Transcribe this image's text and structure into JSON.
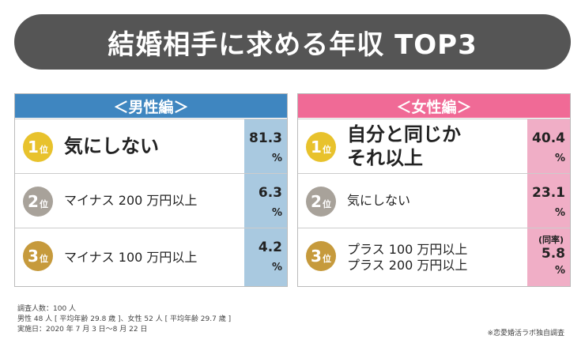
{
  "title": "結婚相手に求める年収 TOP3",
  "panels": [
    {
      "header": "＜男性編＞",
      "rows": [
        {
          "rank_num": "1",
          "rank_suffix": "位",
          "label_lines": [
            "気にしない"
          ],
          "value": "81.3",
          "unit": "%"
        },
        {
          "rank_num": "2",
          "rank_suffix": "位",
          "label_lines": [
            "マイナス 200 万円以上"
          ],
          "value": "6.3",
          "unit": "%"
        },
        {
          "rank_num": "3",
          "rank_suffix": "位",
          "label_lines": [
            "マイナス 100 万円以上"
          ],
          "value": "4.2",
          "unit": "%"
        }
      ]
    },
    {
      "header": "＜女性編＞",
      "rows": [
        {
          "rank_num": "1",
          "rank_suffix": "位",
          "label_lines": [
            "自分と同じか",
            "それ以上"
          ],
          "value": "40.4",
          "unit": "%"
        },
        {
          "rank_num": "2",
          "rank_suffix": "位",
          "label_lines": [
            "気にしない"
          ],
          "value": "23.1",
          "unit": "%"
        },
        {
          "rank_num": "3",
          "rank_suffix": "位",
          "label_lines": [
            "プラス 100 万円以上",
            "プラス 200 万円以上"
          ],
          "value": "5.8",
          "unit": "%",
          "note": "(同率)"
        }
      ]
    }
  ],
  "footnote": [
    "調査人数：100 人",
    "男性 48 人 [ 平均年齢 29.8 歳 ]、女性 52 人 [ 平均年齢 29.7 歳 ]",
    "実施日：2020 年 7 月 3 日～8 月 22 日"
  ],
  "source": "※恋愛婚活ラボ独自調査",
  "colors": {
    "male_header": "#3f86c0",
    "male_value_bg": "#a9c9e0",
    "female_header": "#f06a96",
    "female_value_bg": "#f0aec6",
    "title_bg": "#555555",
    "gold": "#e8c22c",
    "silver": "#a8a29a",
    "bronze": "#c69a3c"
  },
  "chart_data": {
    "type": "table",
    "title": "結婚相手に求める年収 TOP3",
    "groups": [
      {
        "name": "＜男性編＞",
        "rows": [
          {
            "rank": 1,
            "label": "気にしない",
            "value": 81.3
          },
          {
            "rank": 2,
            "label": "マイナス 200 万円以上",
            "value": 6.3
          },
          {
            "rank": 3,
            "label": "マイナス 100 万円以上",
            "value": 4.2
          }
        ]
      },
      {
        "name": "＜女性編＞",
        "rows": [
          {
            "rank": 1,
            "label": "自分と同じか それ以上",
            "value": 40.4
          },
          {
            "rank": 2,
            "label": "気にしない",
            "value": 23.1
          },
          {
            "rank": 3,
            "label": "プラス 100 万円以上 / プラス 200 万円以上",
            "value": 5.8,
            "note": "(同率)"
          }
        ]
      }
    ],
    "unit": "%"
  }
}
